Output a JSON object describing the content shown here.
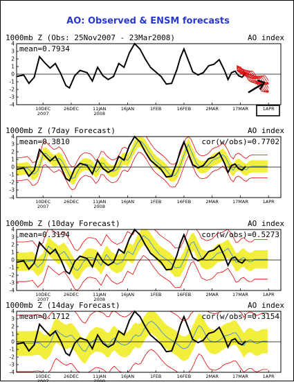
{
  "title": "AO: Observed & ENSM forecasts",
  "x_ticks": [
    {
      "l1": "10DEC",
      "l2": "2007",
      "day": 15
    },
    {
      "l1": "26DEC",
      "l2": "",
      "day": 31
    },
    {
      "l1": "11JAN",
      "l2": "2008",
      "day": 47
    },
    {
      "l1": "16JAN",
      "l2": "",
      "day": 63
    },
    {
      "l1": "1FEB",
      "l2": "",
      "day": 79
    },
    {
      "l1": "16FEB",
      "l2": "",
      "day": 95
    },
    {
      "l1": "2MAR",
      "l2": "",
      "day": 111
    },
    {
      "l1": "17MAR",
      "l2": "",
      "day": 127
    },
    {
      "l1": "1APR",
      "l2": "",
      "day": 143
    }
  ],
  "y_ticks": [
    "4",
    "3",
    "2",
    "1",
    "0",
    "-1",
    "-2",
    "-3",
    "-4"
  ],
  "colors": {
    "title": "#2a38c8",
    "obs": "#000000",
    "forecast": "#e00000",
    "spread": "#f2ee3c",
    "mean_line": "#3d8fe0"
  },
  "panels": [
    {
      "label": "1000mb Z (Obs: 25Nov2007 - 23Mar2008)",
      "index_label": "AO index",
      "mean_text": "mean=0.7934",
      "cor_text": ""
    },
    {
      "label": "1000mb Z (7day Forecast)",
      "index_label": "AO index",
      "mean_text": "mean=0.3810",
      "cor_text": "cor(w/obs)=0.7702"
    },
    {
      "label": "1000mb Z (10day Forecast)",
      "index_label": "AO index",
      "mean_text": "mean=0.3194",
      "cor_text": "cor(w/obs)=0.5273"
    },
    {
      "label": "1000mb Z (14day Forecast)",
      "index_label": "AO index",
      "mean_text": "mean=0.1712",
      "cor_text": "cor(w/obs)=0.3154"
    }
  ],
  "chart_data": {
    "type": "line",
    "x_unit": "days since 25Nov2007",
    "xlim": [
      0,
      150
    ],
    "ylim": [
      -4,
      4
    ],
    "observed": [
      [
        0,
        -0.3
      ],
      [
        4,
        -0.1
      ],
      [
        7,
        -1.2
      ],
      [
        10,
        -0.4
      ],
      [
        13,
        2.3
      ],
      [
        16,
        1.5
      ],
      [
        19,
        0.8
      ],
      [
        22,
        1.4
      ],
      [
        25,
        0.1
      ],
      [
        28,
        -1.5
      ],
      [
        30,
        -1.8
      ],
      [
        33,
        -0.2
      ],
      [
        36,
        0.5
      ],
      [
        40,
        0.2
      ],
      [
        43,
        -0.9
      ],
      [
        46,
        0.9
      ],
      [
        49,
        -0.2
      ],
      [
        52,
        -0.7
      ],
      [
        55,
        -0.3
      ],
      [
        58,
        1.4
      ],
      [
        61,
        0.9
      ],
      [
        64,
        2.8
      ],
      [
        67,
        4.0
      ],
      [
        70,
        3.3
      ],
      [
        73,
        2.0
      ],
      [
        76,
        0.9
      ],
      [
        79,
        0.3
      ],
      [
        82,
        -0.3
      ],
      [
        85,
        -1.3
      ],
      [
        88,
        -1.2
      ],
      [
        91,
        0.6
      ],
      [
        93,
        2.2
      ],
      [
        95,
        3.3
      ],
      [
        97,
        2.1
      ],
      [
        100,
        0.3
      ],
      [
        103,
        -0.1
      ],
      [
        106,
        0.2
      ],
      [
        109,
        1.1
      ],
      [
        112,
        1.3
      ],
      [
        115,
        1.9
      ],
      [
        118,
        0.5
      ],
      [
        120,
        -0.7
      ],
      [
        122,
        0.2
      ],
      [
        124,
        0.4
      ],
      [
        126,
        -0.2
      ],
      [
        128,
        -0.4
      ],
      [
        130,
        0.1
      ]
    ],
    "forecast_end_day": 143
  }
}
